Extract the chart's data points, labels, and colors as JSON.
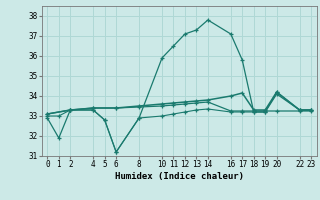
{
  "xlabel": "Humidex (Indice chaleur)",
  "xlim": [
    -0.5,
    23.5
  ],
  "ylim": [
    31,
    38.5
  ],
  "yticks": [
    31,
    32,
    33,
    34,
    35,
    36,
    37,
    38
  ],
  "xticks": [
    0,
    1,
    2,
    4,
    5,
    6,
    8,
    10,
    11,
    12,
    13,
    14,
    16,
    17,
    18,
    19,
    20,
    22,
    23
  ],
  "bg_color": "#cce9e7",
  "grid_color": "#afd8d5",
  "line_color": "#1a7a6e",
  "line1_x": [
    0,
    1,
    2,
    4,
    5,
    6,
    8,
    10,
    11,
    12,
    13,
    14,
    16,
    17,
    18,
    19,
    20,
    22,
    23
  ],
  "line1_y": [
    32.9,
    31.9,
    33.3,
    33.3,
    32.8,
    31.2,
    32.9,
    35.9,
    36.5,
    37.1,
    37.3,
    37.8,
    37.1,
    35.8,
    33.2,
    33.2,
    34.1,
    33.3,
    33.3
  ],
  "line2_x": [
    0,
    2,
    4,
    6,
    8,
    10,
    11,
    12,
    13,
    14,
    16,
    17,
    18,
    19,
    20,
    22,
    23
  ],
  "line2_y": [
    33.1,
    33.3,
    33.4,
    33.4,
    33.5,
    33.6,
    33.65,
    33.7,
    33.75,
    33.8,
    34.0,
    34.15,
    33.3,
    33.3,
    34.2,
    33.3,
    33.3
  ],
  "line3_x": [
    0,
    2,
    4,
    6,
    8,
    10,
    11,
    12,
    13,
    14,
    16,
    17,
    18,
    19,
    20,
    22,
    23
  ],
  "line3_y": [
    33.1,
    33.3,
    33.4,
    33.4,
    33.45,
    33.5,
    33.55,
    33.6,
    33.65,
    33.7,
    33.25,
    33.25,
    33.25,
    33.25,
    33.25,
    33.25,
    33.25
  ],
  "line4_x": [
    0,
    1,
    2,
    4,
    5,
    6,
    8,
    10,
    11,
    12,
    13,
    14,
    16,
    17,
    18,
    19,
    20,
    22,
    23
  ],
  "line4_y": [
    33.0,
    33.0,
    33.3,
    33.3,
    32.8,
    31.2,
    32.9,
    33.0,
    33.1,
    33.2,
    33.3,
    33.35,
    33.2,
    33.2,
    33.2,
    33.2,
    34.2,
    33.3,
    33.3
  ]
}
